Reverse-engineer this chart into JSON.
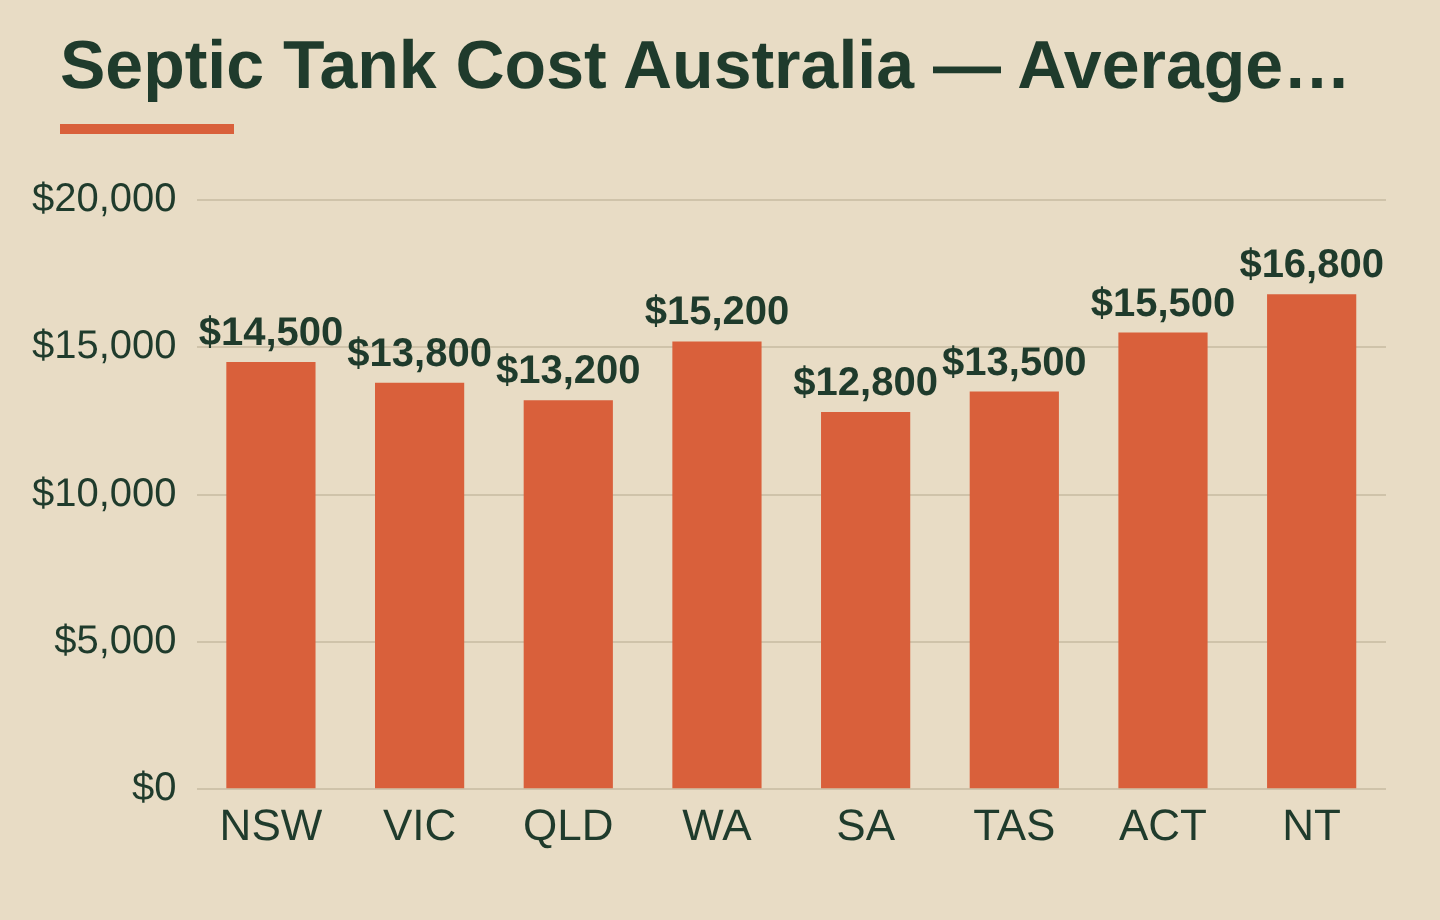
{
  "chart_data": {
    "type": "bar",
    "title": "Septic Tank Cost Australia — Average…",
    "categories": [
      "NSW",
      "VIC",
      "QLD",
      "WA",
      "SA",
      "TAS",
      "ACT",
      "NT"
    ],
    "values": [
      14500,
      13800,
      13200,
      15200,
      12800,
      13500,
      15500,
      16800
    ],
    "value_labels": [
      "$14,500",
      "$13,800",
      "$13,200",
      "$15,200",
      "$12,800",
      "$13,500",
      "$15,500",
      "$16,800"
    ],
    "color": "#d9603b",
    "ylim": [
      0,
      20000
    ],
    "yticks": [
      {
        "value": 0,
        "label": "$0"
      },
      {
        "value": 5000,
        "label": "$5,000"
      },
      {
        "value": 10000,
        "label": "$10,000"
      },
      {
        "value": 15000,
        "label": "$15,000"
      },
      {
        "value": 20000,
        "label": "$20,000"
      }
    ],
    "grid": "y",
    "legend": false
  }
}
